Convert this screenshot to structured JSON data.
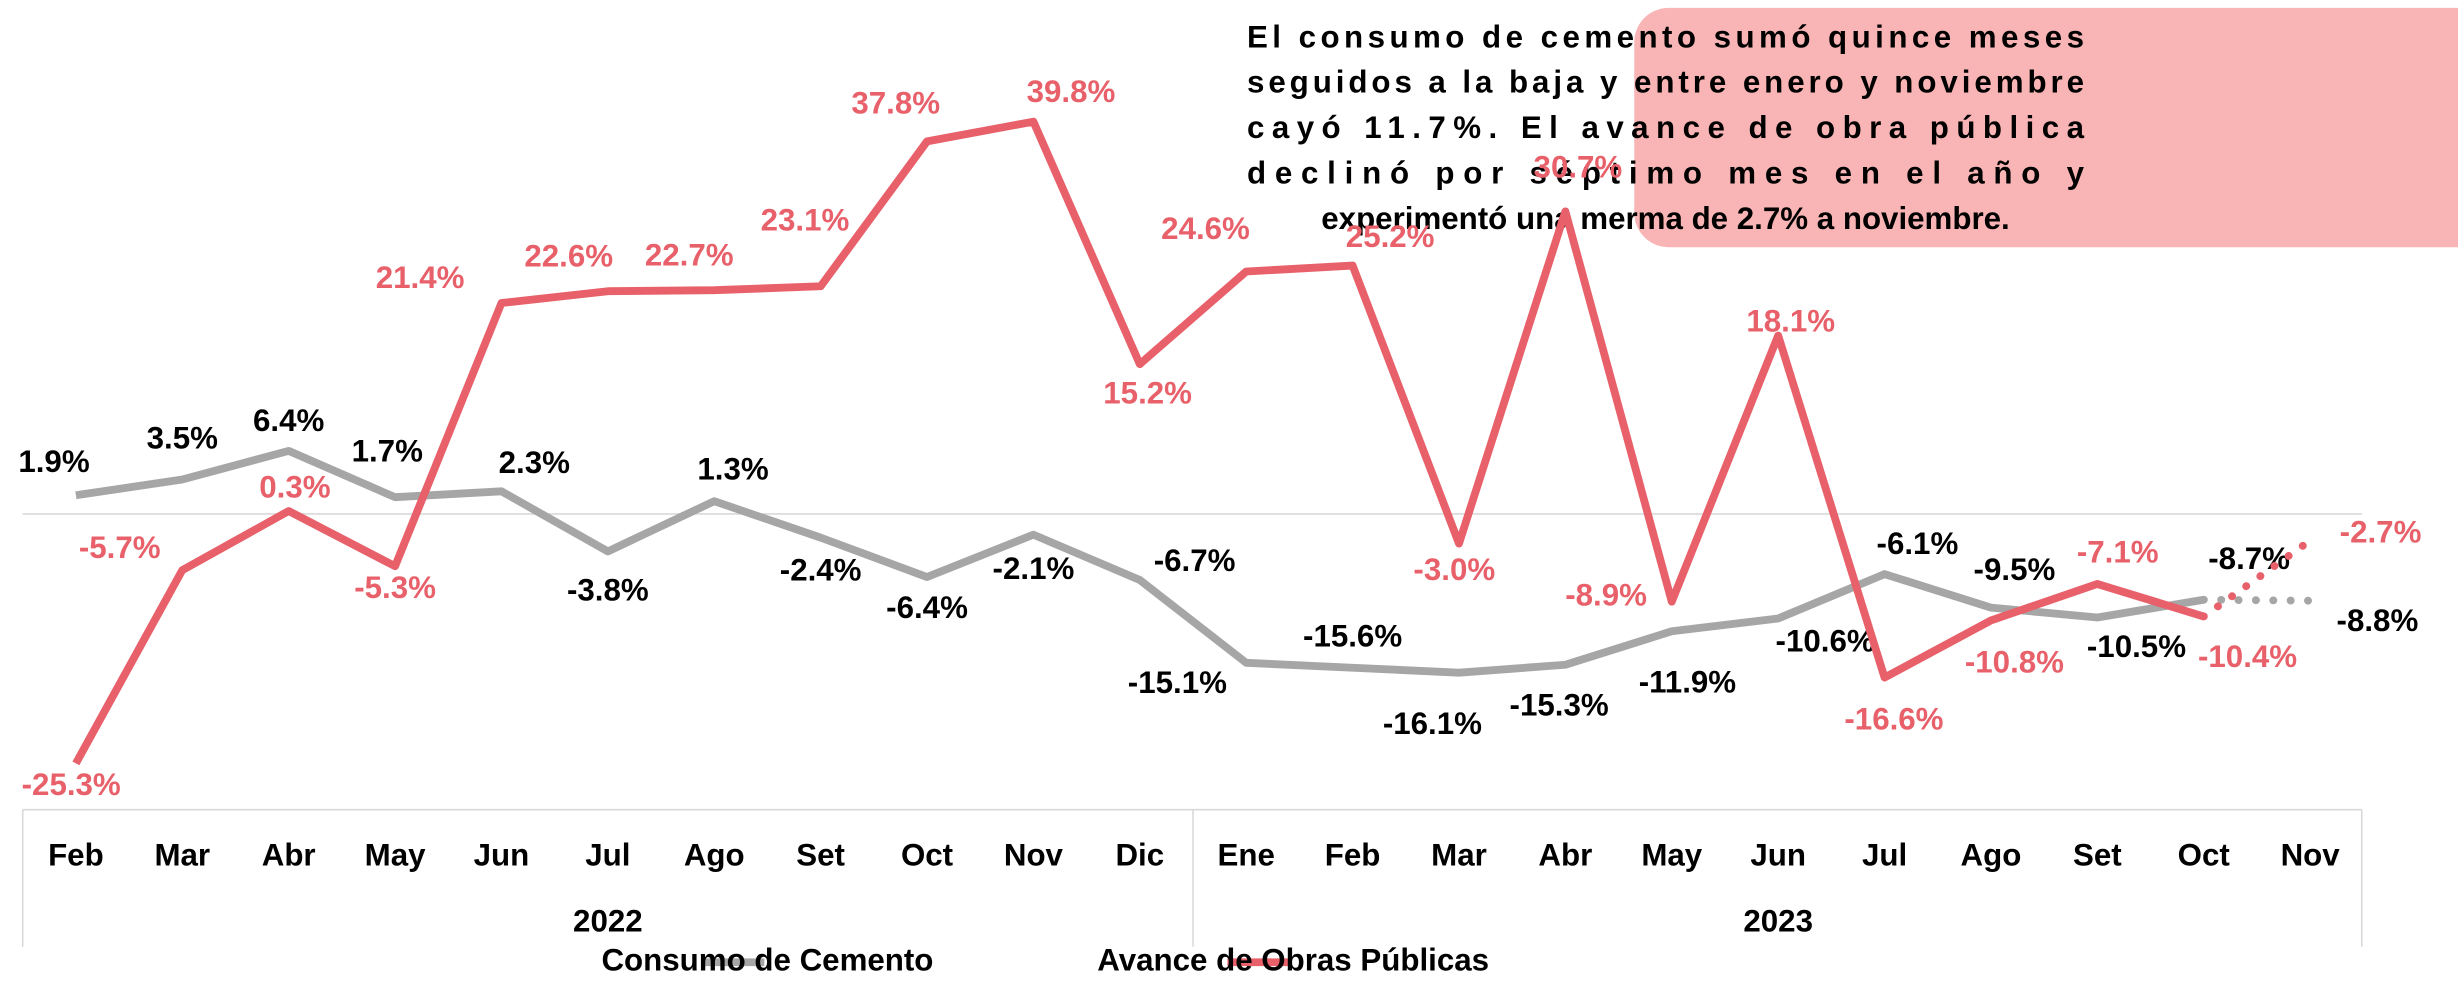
{
  "chart_data": {
    "type": "line",
    "categories": [
      "Feb",
      "Mar",
      "Abr",
      "May",
      "Jun",
      "Jul",
      "Ago",
      "Set",
      "Oct",
      "Nov",
      "Dic",
      "Ene",
      "Feb",
      "Mar",
      "Abr",
      "May",
      "Jun",
      "Jul",
      "Ago",
      "Set",
      "Oct",
      "Nov"
    ],
    "years": [
      "2022",
      "2023"
    ],
    "ylim": [
      -30,
      45
    ],
    "series": [
      {
        "name": "Consumo de Cemento",
        "color": "#a6a6a6",
        "label_color": "#000000",
        "dotted_last_segment": true,
        "values": [
          1.9,
          3.5,
          6.4,
          1.7,
          2.3,
          -3.8,
          1.3,
          -2.4,
          -6.4,
          -2.1,
          -6.7,
          -15.1,
          -15.6,
          -16.1,
          -15.3,
          -11.9,
          -10.6,
          -6.1,
          -9.5,
          -10.5,
          -8.7,
          -8.8
        ],
        "value_labels": [
          "1.9%",
          "3.5%",
          "6.4%",
          "1.7%",
          "2.3%",
          "-3.8%",
          "1.3%",
          "-2.4%",
          "-6.4%",
          "-2.1%",
          "-6.7%",
          "-15.1%",
          "-15.6%",
          "-16.1%",
          "-15.3%",
          "-11.9%",
          "-10.6%",
          "-6.1%",
          "-9.5%",
          "-10.5%",
          "-8.7%",
          "-8.8%"
        ]
      },
      {
        "name": "Avance de Obras Públicas",
        "color": "#e8606a",
        "label_color": "#e8606a",
        "dotted_last_segment": true,
        "values": [
          -25.3,
          -5.7,
          0.3,
          -5.3,
          21.4,
          22.6,
          22.7,
          23.1,
          37.8,
          39.8,
          15.2,
          24.6,
          25.2,
          -3.0,
          30.7,
          -8.9,
          18.1,
          -16.6,
          -10.8,
          -7.1,
          -10.4,
          -2.7
        ],
        "value_labels": [
          "-25.3%",
          "-5.7%",
          "0.3%",
          "-5.3%",
          "21.4%",
          "22.6%",
          "22.7%",
          "23.1%",
          "37.8%",
          "39.8%",
          "15.2%",
          "24.6%",
          "25.2%",
          "-3.0%",
          "30.7%",
          "-8.9%",
          "18.1%",
          "-16.6%",
          "-10.8%",
          "-7.1%",
          "-10.4%",
          "-2.7%"
        ]
      }
    ],
    "annotation_lines": [
      "El consumo de cemento sumó quince meses",
      "seguidos a la baja y entre enero y noviembre",
      "cayó 11.7%. El avance de obra pública",
      "declinó por séptimo mes en el año y",
      "experimentó una merma de 2.7% a noviembre."
    ]
  }
}
